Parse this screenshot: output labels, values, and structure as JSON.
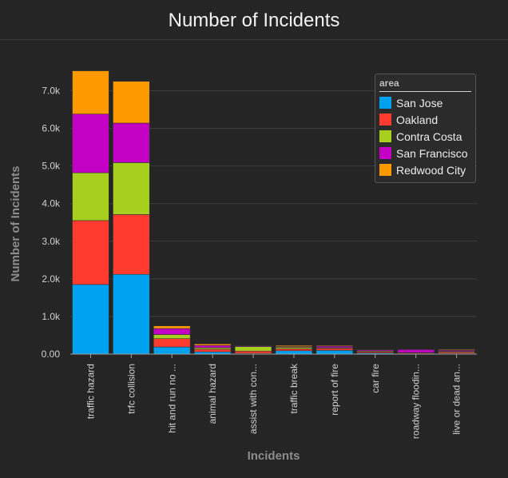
{
  "chart_data": {
    "type": "bar",
    "stacked": true,
    "title": "Number of Incidents",
    "xlabel": "Incidents",
    "ylabel": "Number of Incidents",
    "ylim": [
      0,
      7500
    ],
    "yticks": [
      0,
      1000,
      2000,
      3000,
      4000,
      5000,
      6000,
      7000
    ],
    "ytick_labels": [
      "0.00",
      "1.0k",
      "2.0k",
      "3.0k",
      "4.0k",
      "5.0k",
      "6.0k",
      "7.0k"
    ],
    "grid": true,
    "legend_title": "area",
    "legend_position": "top-right",
    "categories": [
      "traffic hazard",
      "trfc collision",
      "hit and run no ...",
      "animal hazard",
      "assist with con...",
      "traffic break",
      "report of fire",
      "car fire",
      "roadway floodin...",
      "live or dead an..."
    ],
    "series": [
      {
        "name": "San Jose",
        "color": "#00a2f0",
        "values": [
          1850,
          2120,
          190,
          60,
          20,
          90,
          100,
          30,
          10,
          20
        ]
      },
      {
        "name": "Oakland",
        "color": "#ff3b2f",
        "values": [
          1700,
          1590,
          220,
          70,
          60,
          50,
          50,
          30,
          20,
          30
        ]
      },
      {
        "name": "Contra Costa",
        "color": "#a6d01d",
        "values": [
          1270,
          1380,
          110,
          40,
          120,
          40,
          20,
          20,
          10,
          20
        ]
      },
      {
        "name": "San Francisco",
        "color": "#c400c4",
        "values": [
          1560,
          1050,
          160,
          60,
          20,
          20,
          40,
          30,
          80,
          30
        ]
      },
      {
        "name": "Redwood City",
        "color": "#ff9900",
        "values": [
          1150,
          1110,
          70,
          40,
          10,
          30,
          20,
          10,
          0,
          20
        ]
      }
    ]
  }
}
